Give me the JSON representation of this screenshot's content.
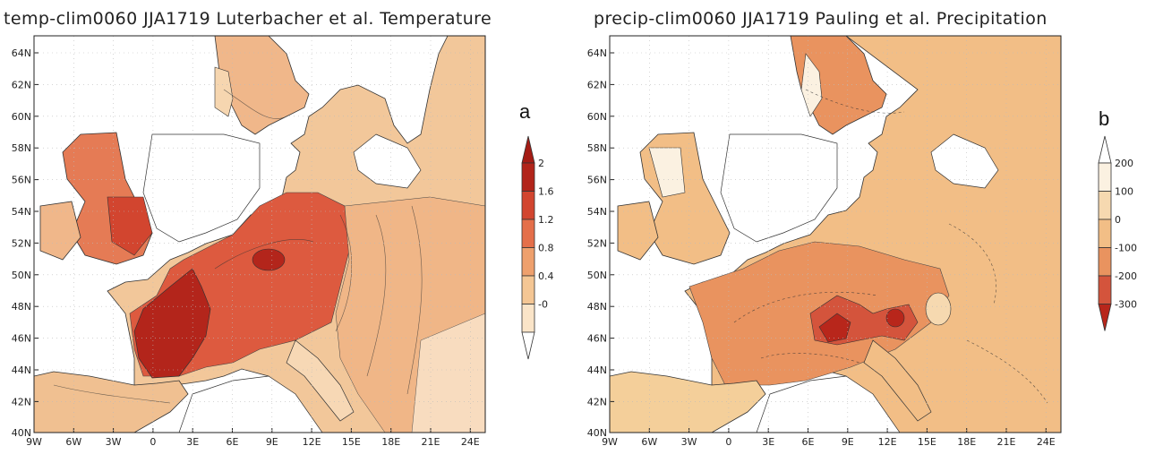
{
  "panels": [
    {
      "id": "a",
      "title": "temp-clim0060 JJA1719 Luterbacher et al. Temperature",
      "panel_label": "a",
      "lat_labels": [
        "64N",
        "62N",
        "60N",
        "58N",
        "56N",
        "54N",
        "52N",
        "50N",
        "48N",
        "46N",
        "44N",
        "42N",
        "40N"
      ],
      "lon_labels": [
        "9W",
        "6W",
        "3W",
        "0",
        "3E",
        "6E",
        "9E",
        "12E",
        "15E",
        "18E",
        "21E",
        "24E"
      ],
      "colorbar": {
        "labels": [
          "2",
          "1.6",
          "1.2",
          "0.8",
          "0.4",
          "-0"
        ],
        "colors": [
          "#b2241a",
          "#d2452f",
          "#e46f4a",
          "#eea06d",
          "#f4c694",
          "#fae4c8"
        ],
        "top_arrow_color": "#a51c15",
        "bottom_arrow_color": "#ffffff"
      }
    },
    {
      "id": "b",
      "title": "precip-clim0060 JJA1719 Pauling et al. Precipitation",
      "panel_label": "b",
      "lat_labels": [
        "64N",
        "62N",
        "60N",
        "58N",
        "56N",
        "54N",
        "52N",
        "50N",
        "48N",
        "46N",
        "44N",
        "42N",
        "40N"
      ],
      "lon_labels": [
        "9W",
        "6W",
        "3W",
        "0",
        "3E",
        "6E",
        "9E",
        "12E",
        "15E",
        "18E",
        "21E",
        "24E"
      ],
      "colorbar": {
        "labels": [
          "200",
          "100",
          "0",
          "-100",
          "-200",
          "-300"
        ],
        "colors": [
          "#fbf1e1",
          "#f6d9b0",
          "#f2be86",
          "#e9935f",
          "#d4543c"
        ],
        "top_arrow_color": "#ffffff",
        "bottom_arrow_color": "#b8261b"
      }
    }
  ]
}
